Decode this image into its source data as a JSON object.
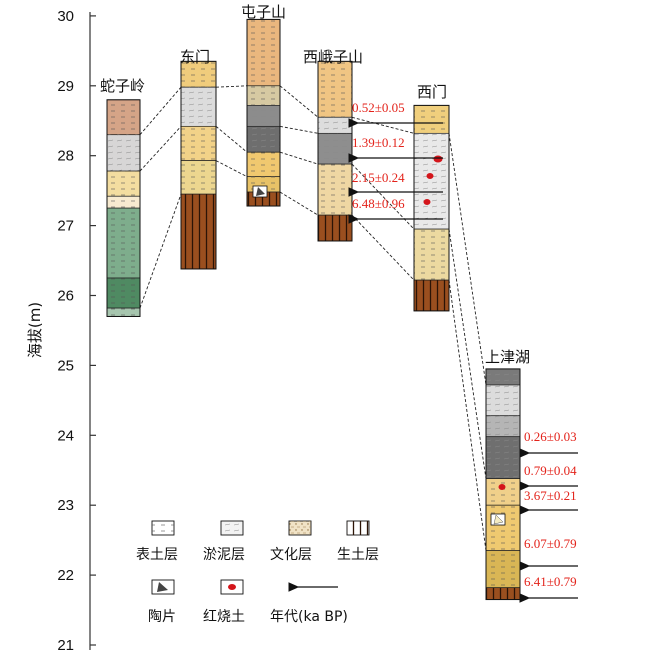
{
  "y_axis": {
    "label": "海拔(m)",
    "ticks": [
      "21",
      "22",
      "23",
      "24",
      "25",
      "26",
      "27",
      "28",
      "29",
      "30"
    ],
    "min": 21,
    "max": 30
  },
  "sections": [
    {
      "id": "shezi",
      "name": "蛇子岭",
      "top": 28.8,
      "bottom": 25.7,
      "layers": [
        {
          "top": 28.8,
          "bottom": 28.3,
          "fill": "#d5a487"
        },
        {
          "top": 28.3,
          "bottom": 27.78,
          "fill": "#d7d6d6"
        },
        {
          "top": 27.78,
          "bottom": 27.42,
          "fill": "#f3dda0"
        },
        {
          "top": 27.42,
          "bottom": 27.25,
          "fill": "#f7ead0"
        },
        {
          "top": 27.25,
          "bottom": 26.25,
          "fill": "#7ead8c"
        },
        {
          "top": 26.25,
          "bottom": 25.82,
          "fill": "#4f8a62"
        },
        {
          "top": 25.82,
          "bottom": 25.7,
          "fill": "#a6c5ae"
        }
      ]
    },
    {
      "id": "dongmen",
      "name": "东门",
      "top": 29.35,
      "bottom": 26.38,
      "layers": [
        {
          "top": 29.35,
          "bottom": 28.98,
          "fill": "#f0cc7c"
        },
        {
          "top": 28.98,
          "bottom": 28.42,
          "fill": "#dcdcdc"
        },
        {
          "top": 28.42,
          "bottom": 27.93,
          "fill": "#f2d288"
        },
        {
          "top": 27.93,
          "bottom": 27.45,
          "fill": "#ecd68f"
        },
        {
          "top": 27.45,
          "bottom": 26.38,
          "fill": "#9a4f1f"
        }
      ]
    },
    {
      "id": "tunzi",
      "name": "屯子山",
      "top": 29.95,
      "bottom": 27.28,
      "layers": [
        {
          "top": 29.95,
          "bottom": 29.0,
          "fill": "#eab77e"
        },
        {
          "top": 29.0,
          "bottom": 28.72,
          "fill": "#d6c9a2"
        },
        {
          "top": 28.72,
          "bottom": 28.42,
          "fill": "#8c8c8c"
        },
        {
          "top": 28.42,
          "bottom": 28.05,
          "fill": "#6e6e6e"
        },
        {
          "top": 28.05,
          "bottom": 27.7,
          "fill": "#f0c86f"
        },
        {
          "top": 27.7,
          "bottom": 27.48,
          "fill": "#e8c267"
        },
        {
          "top": 27.48,
          "bottom": 27.28,
          "fill": "#9a4f1f"
        }
      ]
    },
    {
      "id": "xie",
      "name": "西峨子山",
      "top": 29.35,
      "bottom": 26.78,
      "layers": [
        {
          "top": 29.35,
          "bottom": 28.55,
          "fill": "#f0c583"
        },
        {
          "top": 28.55,
          "bottom": 28.32,
          "fill": "#dddddd"
        },
        {
          "top": 28.32,
          "bottom": 27.88,
          "fill": "#8e8e8e"
        },
        {
          "top": 27.88,
          "bottom": 27.15,
          "fill": "#efd7a3"
        },
        {
          "top": 27.15,
          "bottom": 26.78,
          "fill": "#9a4f1f"
        }
      ]
    },
    {
      "id": "ximen",
      "name": "西门",
      "top": 28.72,
      "bottom": 25.78,
      "layers": [
        {
          "top": 28.72,
          "bottom": 28.32,
          "fill": "#f0cf7d"
        },
        {
          "top": 28.32,
          "bottom": 26.95,
          "fill": "#e9e9e9"
        },
        {
          "top": 26.95,
          "bottom": 26.22,
          "fill": "#ecd9a0"
        },
        {
          "top": 26.22,
          "bottom": 25.78,
          "fill": "#9a4f1f"
        }
      ]
    },
    {
      "id": "shangjin",
      "name": "上津湖",
      "top": 24.95,
      "bottom": 21.65,
      "layers": [
        {
          "top": 24.95,
          "bottom": 24.72,
          "fill": "#7a7a7a"
        },
        {
          "top": 24.72,
          "bottom": 24.28,
          "fill": "#dcdcdc"
        },
        {
          "top": 24.28,
          "bottom": 23.98,
          "fill": "#b5b5b5"
        },
        {
          "top": 23.98,
          "bottom": 23.38,
          "fill": "#6f6f6f"
        },
        {
          "top": 23.38,
          "bottom": 23.0,
          "fill": "#f0d08a"
        },
        {
          "top": 23.0,
          "bottom": 22.35,
          "fill": "#efc970"
        },
        {
          "top": 22.35,
          "bottom": 21.82,
          "fill": "#d9b655"
        },
        {
          "top": 21.82,
          "bottom": 21.65,
          "fill": "#9a4f1f"
        }
      ]
    }
  ],
  "dates_xie": [
    "0.52±0.05",
    "1.39±0.12",
    "2.15±0.24",
    "6.48±0.96"
  ],
  "dates_sj": [
    "0.26±0.03",
    "0.79±0.04",
    "3.67±0.21",
    "6.07±0.79",
    "6.41±0.79"
  ],
  "legend": [
    "表土层",
    "淤泥层",
    "文化层",
    "生土层",
    "陶片",
    "红烧土",
    "年代(ka BP)"
  ],
  "colors": {
    "date": "#e3231b",
    "burnt": "#d4151b",
    "natural": "#9a4f1f"
  }
}
